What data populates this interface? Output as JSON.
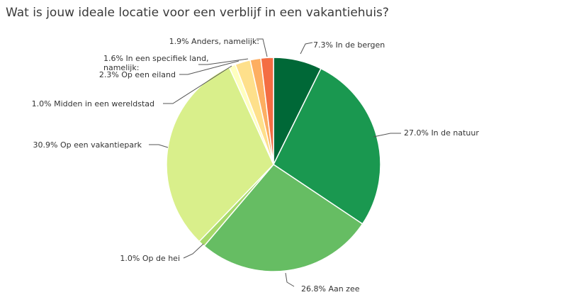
{
  "chart_data": {
    "type": "pie",
    "title": "Wat is jouw ideale locatie voor een verblijf in een vakantiehuis?",
    "slices": [
      {
        "label": "In de bergen",
        "value": 7.3,
        "display": "7.3% In de bergen",
        "color": "#006837"
      },
      {
        "label": "In de natuur",
        "value": 27.0,
        "display": "27.0% In de natuur",
        "color": "#1a9850"
      },
      {
        "label": "Aan zee",
        "value": 26.8,
        "display": "26.8% Aan zee",
        "color": "#66bd63"
      },
      {
        "label": "Op de hei",
        "value": 1.0,
        "display": "1.0% Op de hei",
        "color": "#a6d96a"
      },
      {
        "label": "Op een vakantiepark",
        "value": 30.9,
        "display": "30.9% Op een vakantiepark",
        "color": "#d9ef8b"
      },
      {
        "label": "Midden in een wereldstad",
        "value": 1.0,
        "display": "1.0% Midden in een wereldstad",
        "color": "#ffffbf"
      },
      {
        "label": "Op een eiland",
        "value": 2.3,
        "display": "2.3% Op een eiland",
        "color": "#fee08b"
      },
      {
        "label": "In een specifiek land, namelijk:",
        "value": 1.6,
        "display": "1.6% In een specifiek land, namelijk:",
        "color": "#fdae61"
      },
      {
        "label": "Anders, namelijk:",
        "value": 1.9,
        "display": "1.9% Anders, namelijk:",
        "color": "#f46d43"
      }
    ]
  }
}
